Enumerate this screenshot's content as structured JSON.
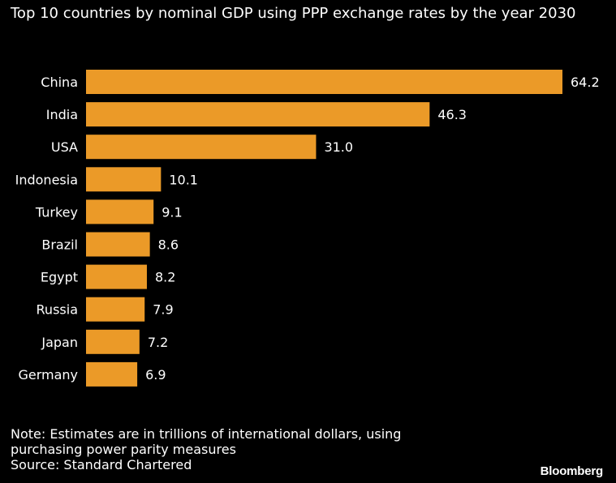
{
  "title": "Top 10 countries by nominal GDP using PPP exchange rates by the year 2030",
  "note_line1": "Note: Estimates are in trillions of international dollars, using",
  "note_line2": "purchasing power parity measures",
  "source": "Source: Standard Chartered",
  "logo": "Bloomberg",
  "colors": {
    "background": "#000000",
    "bar": "#EB9A28",
    "text": "#ffffff"
  },
  "chart_data": {
    "type": "bar",
    "orientation": "horizontal",
    "title": "Top 10 countries by nominal GDP using PPP exchange rates by the year 2030",
    "categories": [
      "China",
      "India",
      "USA",
      "Indonesia",
      "Turkey",
      "Brazil",
      "Egypt",
      "Russia",
      "Japan",
      "Germany"
    ],
    "values": [
      64.2,
      46.3,
      31.0,
      10.1,
      9.1,
      8.6,
      8.2,
      7.9,
      7.2,
      6.9
    ],
    "value_labels": [
      "64.2",
      "46.3",
      "31.0",
      "10.1",
      "9.1",
      "8.6",
      "8.2",
      "7.9",
      "7.2",
      "6.9"
    ],
    "xlabel": "",
    "ylabel": "",
    "xlim": [
      0,
      64.2
    ],
    "grid": false,
    "legend": "none"
  }
}
